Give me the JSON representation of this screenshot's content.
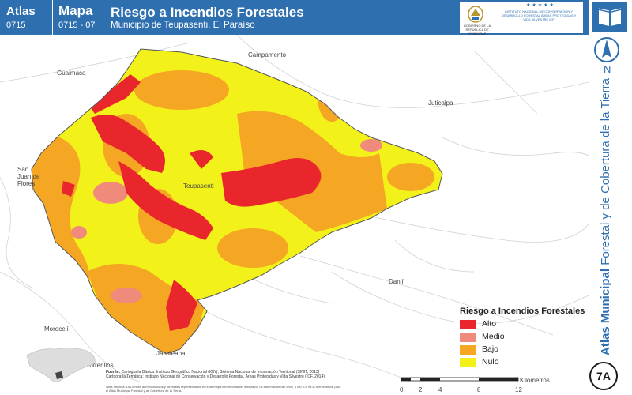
{
  "header": {
    "atlas_label": "Atlas",
    "atlas_code": "0715",
    "map_label": "Mapa",
    "map_code": "0715 - 07",
    "title": "Riesgo a Incendios Forestales",
    "subtitle": "Municipio de Teupasenti, El Paraíso",
    "logo_left_text": "GOBIERNO DE LA REPÚBLICA DE HONDURAS",
    "logo_right_text": "INSTITUTO NACIONAL DE CONSERVACIÓN Y DESARROLLO FORESTAL ÁREAS PROTEGIDAS Y VIDA SILVESTRE ICF"
  },
  "places": {
    "campamento": "Campamento",
    "guaimaca": "Guaimaca",
    "juticalpa": "Juticalpa",
    "san_juan": "San Juan de Flores",
    "teupasenti": "Teupasenti",
    "danli": "Danlí",
    "morocelí": "Morocelí",
    "jacaleapa": "Jacaleapa",
    "potrerillos": "Potrerillos"
  },
  "compass": {
    "label": "N"
  },
  "side_title": {
    "bold": "Atlas Municipal",
    "rest": " Forestal y de Cobertura de la Tierra"
  },
  "badge": "7A",
  "legend": {
    "title": "Riesgo a Incendios Forestales",
    "items": [
      {
        "label": "Alto",
        "color": "#e8262b"
      },
      {
        "label": "Medio",
        "color": "#f08a7a"
      },
      {
        "label": "Bajo",
        "color": "#f5a623"
      },
      {
        "label": "Nulo",
        "color": "#f2f21a"
      }
    ]
  },
  "source": {
    "label": "Fuente:",
    "line1": "Cartografía Básica: Instituto Geográfico Nacional (IGN), Sistema Nacional de Información Territorial (SINIT, 2013)",
    "line2": "Cartografía Temática: Instituto Nacional de Conservación y Desarrollo Forestal, Áreas Protegidas y Vida Silvestre (ICF, 2014)",
    "note": "Nota Técnica: Los límites administrativos y forestales representados en este mapa tienen carácter ilustrativo. La información del SINIT y del ICF es la fuente oficial para el Atlas Municipal Forestal y de Cobertura de la Tierra."
  },
  "scale": {
    "ticks": [
      "0",
      "2",
      "4",
      "8",
      "12"
    ],
    "unit": "Kilómetros"
  }
}
